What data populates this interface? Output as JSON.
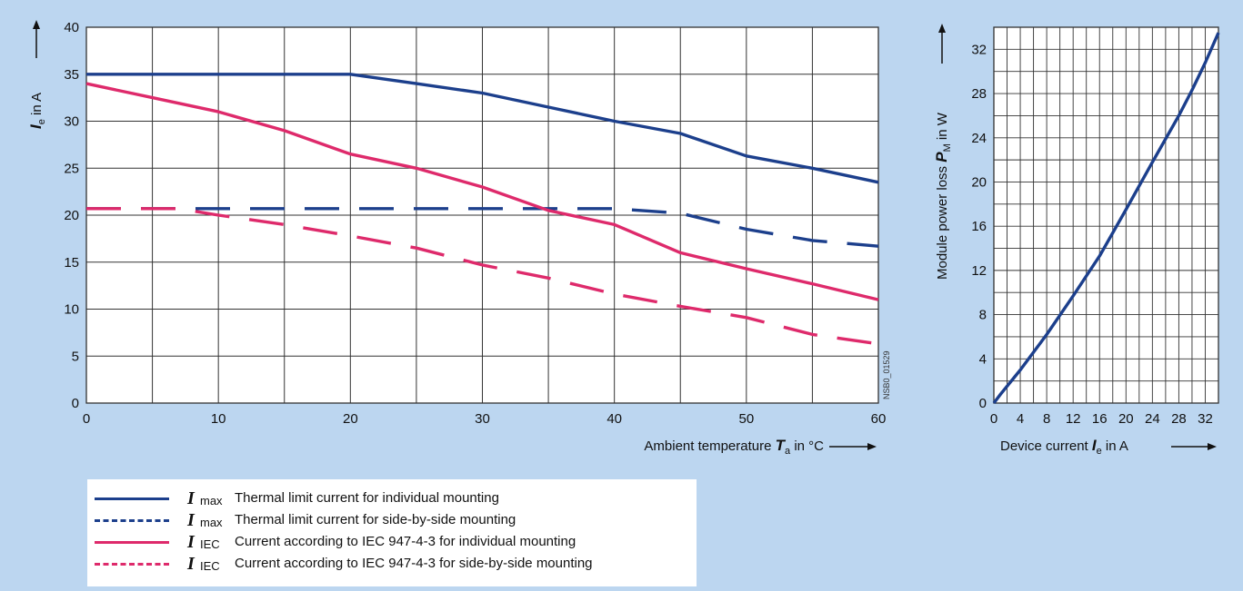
{
  "chart_data": [
    {
      "type": "line",
      "xlabel": "Ambient temperature T_a in °C",
      "ylabel": "I_e in A",
      "xlim": [
        0,
        60
      ],
      "ylim": [
        0,
        40
      ],
      "xticks": [
        0,
        10,
        20,
        30,
        40,
        50,
        60
      ],
      "yticks": [
        0,
        5,
        10,
        15,
        20,
        25,
        30,
        35,
        40
      ],
      "grid": true,
      "annotation": "NSB0_01529",
      "series": [
        {
          "name": "I max Thermal limit current for individual mounting",
          "color": "#1c3f8c",
          "dash": "solid",
          "x": [
            0,
            20,
            25,
            30,
            35,
            40,
            45,
            50,
            55,
            60
          ],
          "y": [
            35,
            35,
            34,
            33,
            31.5,
            30,
            28.7,
            26.3,
            25,
            23.5
          ]
        },
        {
          "name": "I max Thermal limit current for side-by-side mounting",
          "color": "#1c3f8c",
          "dash": "dashed",
          "x": [
            0,
            40,
            45,
            50,
            55,
            60
          ],
          "y": [
            20.7,
            20.7,
            20.2,
            18.5,
            17.3,
            16.7
          ]
        },
        {
          "name": "I IEC Current according to IEC 947-4-3 for individual mounting",
          "color": "#de2a6b",
          "dash": "solid",
          "x": [
            0,
            5,
            10,
            15,
            20,
            25,
            30,
            35,
            40,
            45,
            50,
            55,
            60
          ],
          "y": [
            34,
            32.5,
            31,
            29,
            26.5,
            25,
            23,
            20.5,
            19,
            16,
            14.3,
            12.7,
            11
          ]
        },
        {
          "name": "I IEC Current according to IEC 947-4-3 for side-by-side mounting",
          "color": "#de2a6b",
          "dash": "dashed",
          "x": [
            0,
            7,
            10,
            15,
            20,
            25,
            30,
            35,
            40,
            45,
            50,
            55,
            60
          ],
          "y": [
            20.7,
            20.7,
            20,
            19,
            17.8,
            16.5,
            14.7,
            13.3,
            11.6,
            10.3,
            9.1,
            7.3,
            6.3
          ]
        }
      ]
    },
    {
      "type": "line",
      "xlabel": "Device current I_e in A",
      "ylabel": "Module power loss P_M in W",
      "xlim": [
        0,
        34
      ],
      "ylim": [
        0,
        34
      ],
      "xticks": [
        0,
        4,
        8,
        12,
        16,
        20,
        24,
        28,
        32
      ],
      "yticks": [
        0,
        4,
        8,
        12,
        16,
        20,
        24,
        28,
        32
      ],
      "grid": true,
      "series": [
        {
          "name": "",
          "color": "#1c3f8c",
          "dash": "solid",
          "x": [
            0,
            1,
            4,
            8,
            12,
            16,
            20,
            24,
            28,
            30,
            32,
            34
          ],
          "y": [
            0,
            0.8,
            3,
            6.2,
            9.7,
            13.3,
            17.5,
            21.8,
            26,
            28.3,
            30.8,
            33.5
          ]
        }
      ]
    }
  ],
  "legend": [
    {
      "symbol": "I",
      "sub": "max",
      "text": "Thermal limit current for individual mounting",
      "color": "#1c3f8c",
      "dashed": false
    },
    {
      "symbol": "I",
      "sub": "max",
      "text": "Thermal limit current for side-by-side mounting",
      "color": "#1c3f8c",
      "dashed": true
    },
    {
      "symbol": "I",
      "sub": "IEC",
      "text": "Current according to IEC 947-4-3 for individual mounting",
      "color": "#de2a6b",
      "dashed": false
    },
    {
      "symbol": "I",
      "sub": "IEC",
      "text": "Current according to IEC 947-4-3 for side-by-side mounting",
      "color": "#de2a6b",
      "dashed": true
    }
  ]
}
